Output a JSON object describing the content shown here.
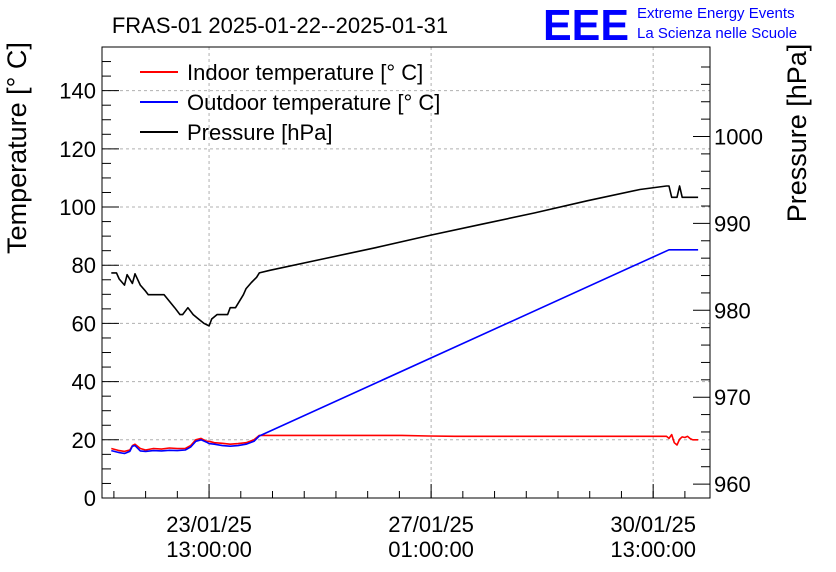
{
  "chart_data": {
    "type": "line",
    "title": "FRAS-01 2025-01-22--2025-01-31",
    "ylabel_left": "Temperature [° C]",
    "ylabel_right": "Pressure [hPa]",
    "xlabel": "",
    "x_units": "hours since 2025-01-22 00:00",
    "xlim": [
      -3.5,
      226.5
    ],
    "ylim_left": [
      0,
      155
    ],
    "ylim_right": [
      958.4,
      1010.3
    ],
    "grid": true,
    "legend_position": "top-left",
    "x_ticks": [
      {
        "x": 37,
        "line1": "23/01/25",
        "line2": "13:00:00"
      },
      {
        "x": 121,
        "line1": "27/01/25",
        "line2": "01:00:00"
      },
      {
        "x": 205,
        "line1": "30/01/25",
        "line2": "13:00:00"
      }
    ],
    "y_ticks_left": [
      0,
      20,
      40,
      60,
      80,
      100,
      120,
      140
    ],
    "y_ticks_right": [
      960,
      970,
      980,
      990,
      1000
    ],
    "series": [
      {
        "name": "Indoor temperature [° C]",
        "color": "#ff0000",
        "axis": "left",
        "x": [
          0,
          3,
          5,
          7,
          8,
          9,
          11,
          13,
          16,
          19,
          22,
          25,
          28,
          30,
          32,
          34,
          36,
          37,
          39,
          42,
          45,
          48,
          51,
          54,
          56,
          60,
          70,
          80,
          90,
          100,
          110,
          120,
          130,
          140,
          150,
          160,
          170,
          180,
          190,
          200,
          208,
          210,
          211,
          212,
          213,
          214,
          215,
          216,
          217,
          218,
          219,
          220,
          222
        ],
        "y": [
          17,
          16.3,
          16,
          16.5,
          18,
          18.5,
          17,
          16.5,
          17,
          16.8,
          17.2,
          17,
          17,
          18,
          20,
          20.5,
          19.5,
          19.5,
          19,
          18.8,
          18.5,
          18.7,
          19,
          20,
          21.5,
          21.5,
          21.5,
          21.5,
          21.5,
          21.5,
          21.5,
          21.3,
          21.2,
          21.2,
          21.2,
          21.2,
          21.2,
          21.2,
          21.2,
          21.2,
          21.2,
          21.2,
          20.5,
          21.8,
          19,
          18.2,
          20.2,
          21,
          20.8,
          21.2,
          20.4,
          20,
          20
        ]
      },
      {
        "name": "Outdoor temperature [° C]",
        "color": "#0000ff",
        "axis": "left",
        "x": [
          0,
          3,
          5,
          7,
          8,
          9,
          11,
          13,
          16,
          19,
          22,
          25,
          28,
          30,
          32,
          34,
          36,
          37,
          39,
          42,
          45,
          48,
          51,
          54,
          56,
          211,
          222
        ],
        "y": [
          16.3,
          15.6,
          15.3,
          16,
          17.8,
          18,
          16.2,
          16,
          16.3,
          16.2,
          16.4,
          16.3,
          16.5,
          17.5,
          19.5,
          20,
          19.2,
          18.7,
          18.5,
          18,
          17.8,
          18,
          18.5,
          19.5,
          21.3,
          85.3,
          85.3
        ]
      },
      {
        "name": "Pressure [hPa]",
        "color": "#000000",
        "axis": "right",
        "x": [
          0,
          2,
          3,
          5,
          6,
          8,
          9,
          11,
          13,
          14,
          17,
          20,
          24,
          26,
          27,
          29,
          31,
          33,
          35,
          37,
          38,
          40,
          44,
          45,
          47,
          50,
          51,
          53,
          55,
          56,
          60,
          80,
          100,
          120,
          140,
          160,
          180,
          200,
          210,
          211,
          212,
          213,
          214,
          215,
          216,
          217,
          222
        ],
        "y": [
          984.3,
          984.3,
          983.6,
          982.9,
          984.1,
          983.1,
          984.2,
          982.9,
          982.2,
          981.8,
          981.8,
          981.8,
          980.3,
          979.5,
          979.5,
          980.3,
          979.5,
          979.0,
          978.5,
          978.2,
          979.0,
          979.5,
          979.5,
          980.3,
          980.3,
          981.8,
          982.5,
          983.2,
          983.8,
          984.3,
          984.6,
          985.9,
          987.2,
          988.6,
          989.9,
          991.2,
          992.6,
          993.9,
          994.3,
          994.3,
          993.0,
          993.0,
          993.0,
          994.3,
          993.0,
          993.0,
          993.0
        ]
      }
    ]
  },
  "logo": {
    "mark": "EEE",
    "line1": "Extreme Energy Events",
    "line2": "La Scienza nelle Scuole",
    "color": "#0000ff"
  }
}
